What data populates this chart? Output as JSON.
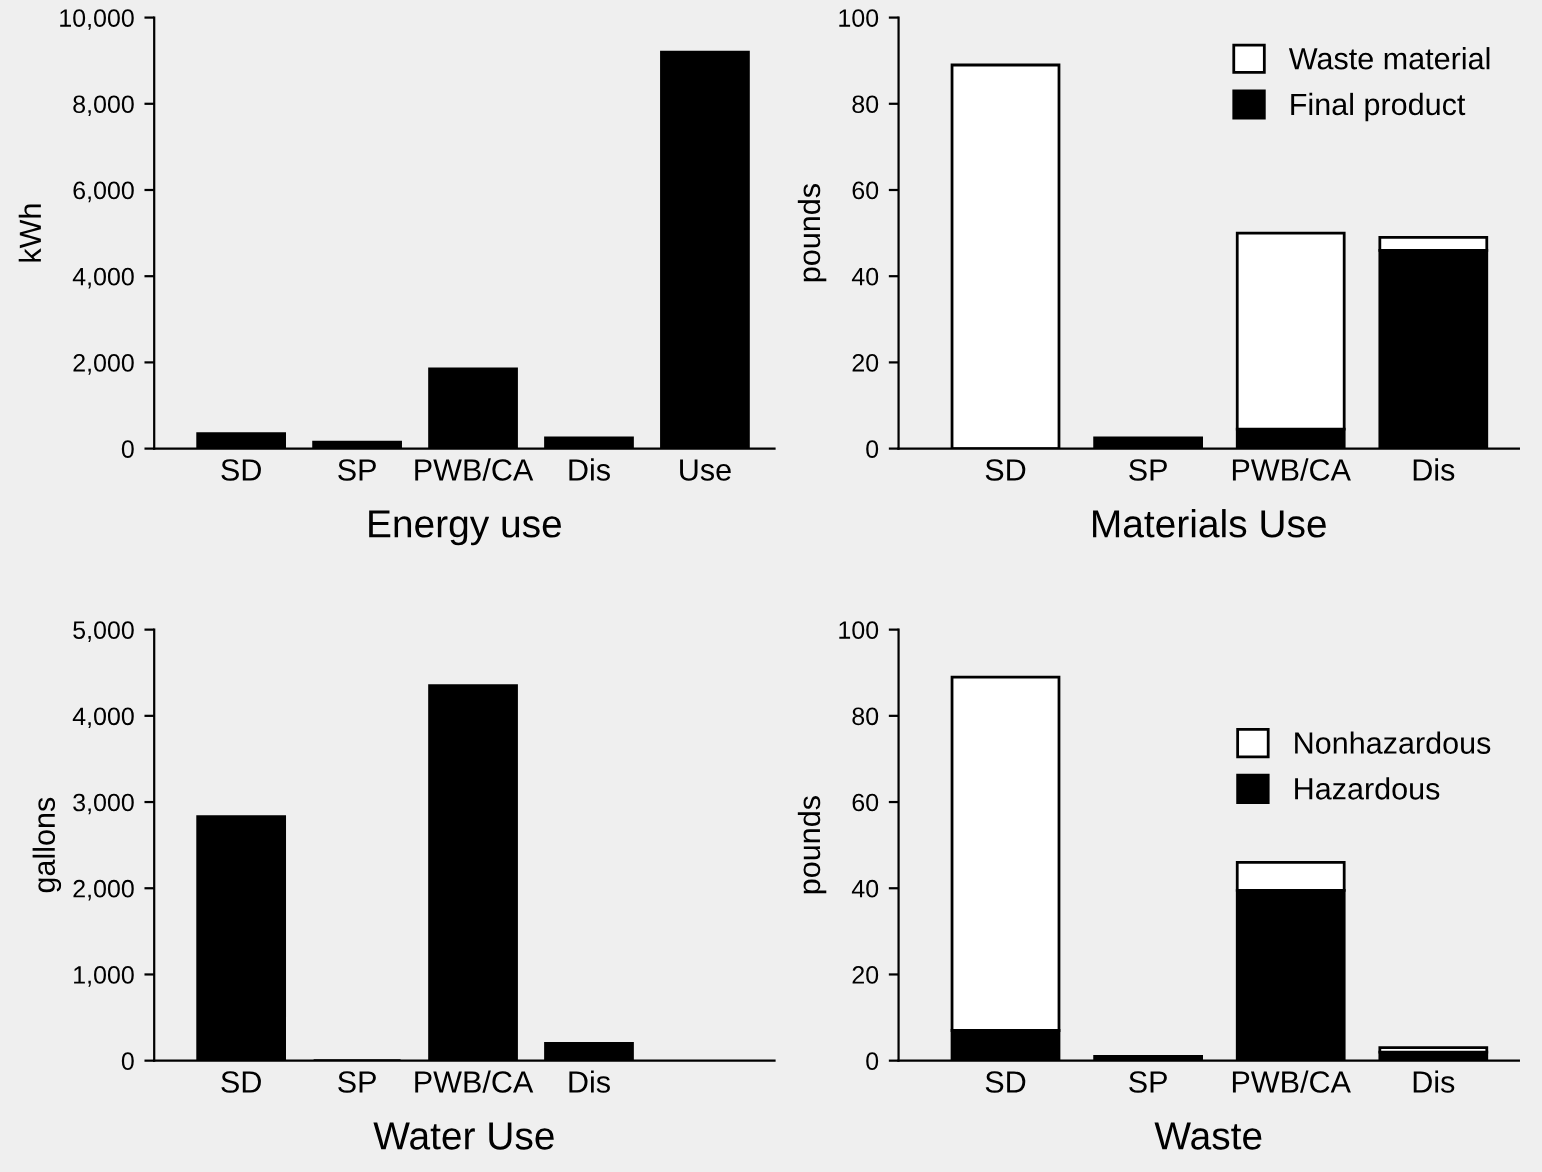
{
  "chart_data": [
    {
      "type": "bar",
      "xlabel": "Energy use",
      "ylabel": "kWh",
      "categories": [
        "SD",
        "SP",
        "PWB/CA",
        "Dis",
        "Use"
      ],
      "values": [
        350,
        150,
        1850,
        250,
        9200
      ],
      "color": "#000000",
      "ylim": [
        0,
        10000
      ],
      "yticks": [
        {
          "value": 0,
          "label": "0"
        },
        {
          "value": 2000,
          "label": "2,000"
        },
        {
          "value": 4000,
          "label": "4,000"
        },
        {
          "value": 6000,
          "label": "6,000"
        },
        {
          "value": 8000,
          "label": "8,000"
        },
        {
          "value": 10000,
          "label": "10,000"
        }
      ],
      "grid": false,
      "legend": false
    },
    {
      "type": "bar",
      "xlabel": "Materials Use",
      "ylabel": "pounds",
      "categories": [
        "SD",
        "SP",
        "PWB/CA",
        "Dis"
      ],
      "stacked": true,
      "series": [
        {
          "name": "Final product",
          "color": "#000000",
          "values": [
            0,
            2.5,
            4.5,
            46
          ]
        },
        {
          "name": "Waste material",
          "color": "#ffffff",
          "values": [
            89,
            null,
            45.5,
            3
          ]
        }
      ],
      "ylim": [
        0,
        100
      ],
      "yticks": [
        0,
        20,
        40,
        60,
        80,
        100
      ],
      "grid": false,
      "legend": "top right"
    },
    {
      "type": "bar",
      "xlabel": "Water Use",
      "ylabel": "gallons",
      "categories": [
        "SD",
        "SP",
        "PWB/CA",
        "Dis",
        null
      ],
      "values": [
        2830,
        0,
        4350,
        200,
        null
      ],
      "color": "#000000",
      "ylim": [
        0,
        5000
      ],
      "yticks": [
        {
          "value": 0,
          "label": "0"
        },
        {
          "value": 1000,
          "label": "1,000"
        },
        {
          "value": 2000,
          "label": "2,000"
        },
        {
          "value": 3000,
          "label": "3,000"
        },
        {
          "value": 4000,
          "label": "4,000"
        },
        {
          "value": 5000,
          "label": "5,000"
        }
      ],
      "grid": false,
      "legend": false
    },
    {
      "type": "bar",
      "xlabel": "Waste",
      "ylabel": "pounds",
      "categories": [
        "SD",
        "SP",
        "PWB/CA",
        "Dis"
      ],
      "stacked": true,
      "series": [
        {
          "name": "Hazardous",
          "color": "#000000",
          "values": [
            7,
            1,
            39.5,
            2
          ]
        },
        {
          "name": "Nonhazardous",
          "color": "#ffffff",
          "values": [
            82,
            null,
            6.5,
            1
          ]
        }
      ],
      "ylim": [
        0,
        100
      ],
      "yticks": [
        0,
        20,
        40,
        60,
        80,
        100
      ],
      "grid": false,
      "legend": "center right"
    }
  ]
}
